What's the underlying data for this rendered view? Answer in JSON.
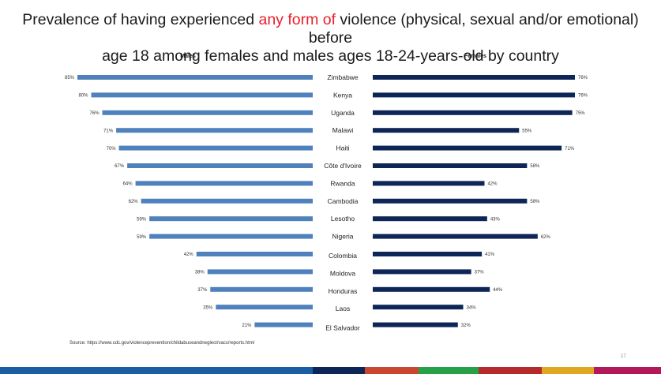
{
  "title": {
    "part1": "Prevalence of having experienced ",
    "highlight": "any form of",
    "part2": " violence (physical, sexual and/or emotional) before",
    "line2": "age 18 among females and males ages 18-24-years-old by country"
  },
  "source": "Source: https://www.cdc.gov/violenceprevention/childabuseandneglect/vacs/reports.html",
  "page_number": "17",
  "colors": {
    "males": "#4f81bd",
    "females": "#0e2557",
    "highlight": "#e8202a",
    "footer": [
      "#1a5fa6",
      "#0e2557",
      "#2d2d2d",
      "#c8472e",
      "#27a04a",
      "#b52a2c",
      "#7a1a2e",
      "#e0a820",
      "#b3195a"
    ]
  },
  "chart_data": {
    "type": "bar",
    "orientation": "horizontal-butterfly",
    "categories": [
      "Zimbabwe",
      "Kenya",
      "Uganda",
      "Malawi",
      "Haiti",
      "Côte d'Ivoire",
      "Rwanda",
      "Cambodia",
      "Lesotho",
      "Nigeria",
      "Colombia",
      "Moldova",
      "Honduras",
      "Laos",
      "El Salvador"
    ],
    "series": [
      {
        "name": "Males",
        "values": [
          85,
          80,
          76,
          71,
          70,
          67,
          64,
          62,
          59,
          59,
          42,
          38,
          37,
          35,
          21
        ]
      },
      {
        "name": "Females",
        "values": [
          76,
          76,
          75,
          55,
          71,
          58,
          42,
          58,
          43,
          62,
          41,
          37,
          44,
          34,
          32
        ]
      }
    ],
    "value_suffix": "%",
    "xlim": [
      0,
      100
    ]
  }
}
